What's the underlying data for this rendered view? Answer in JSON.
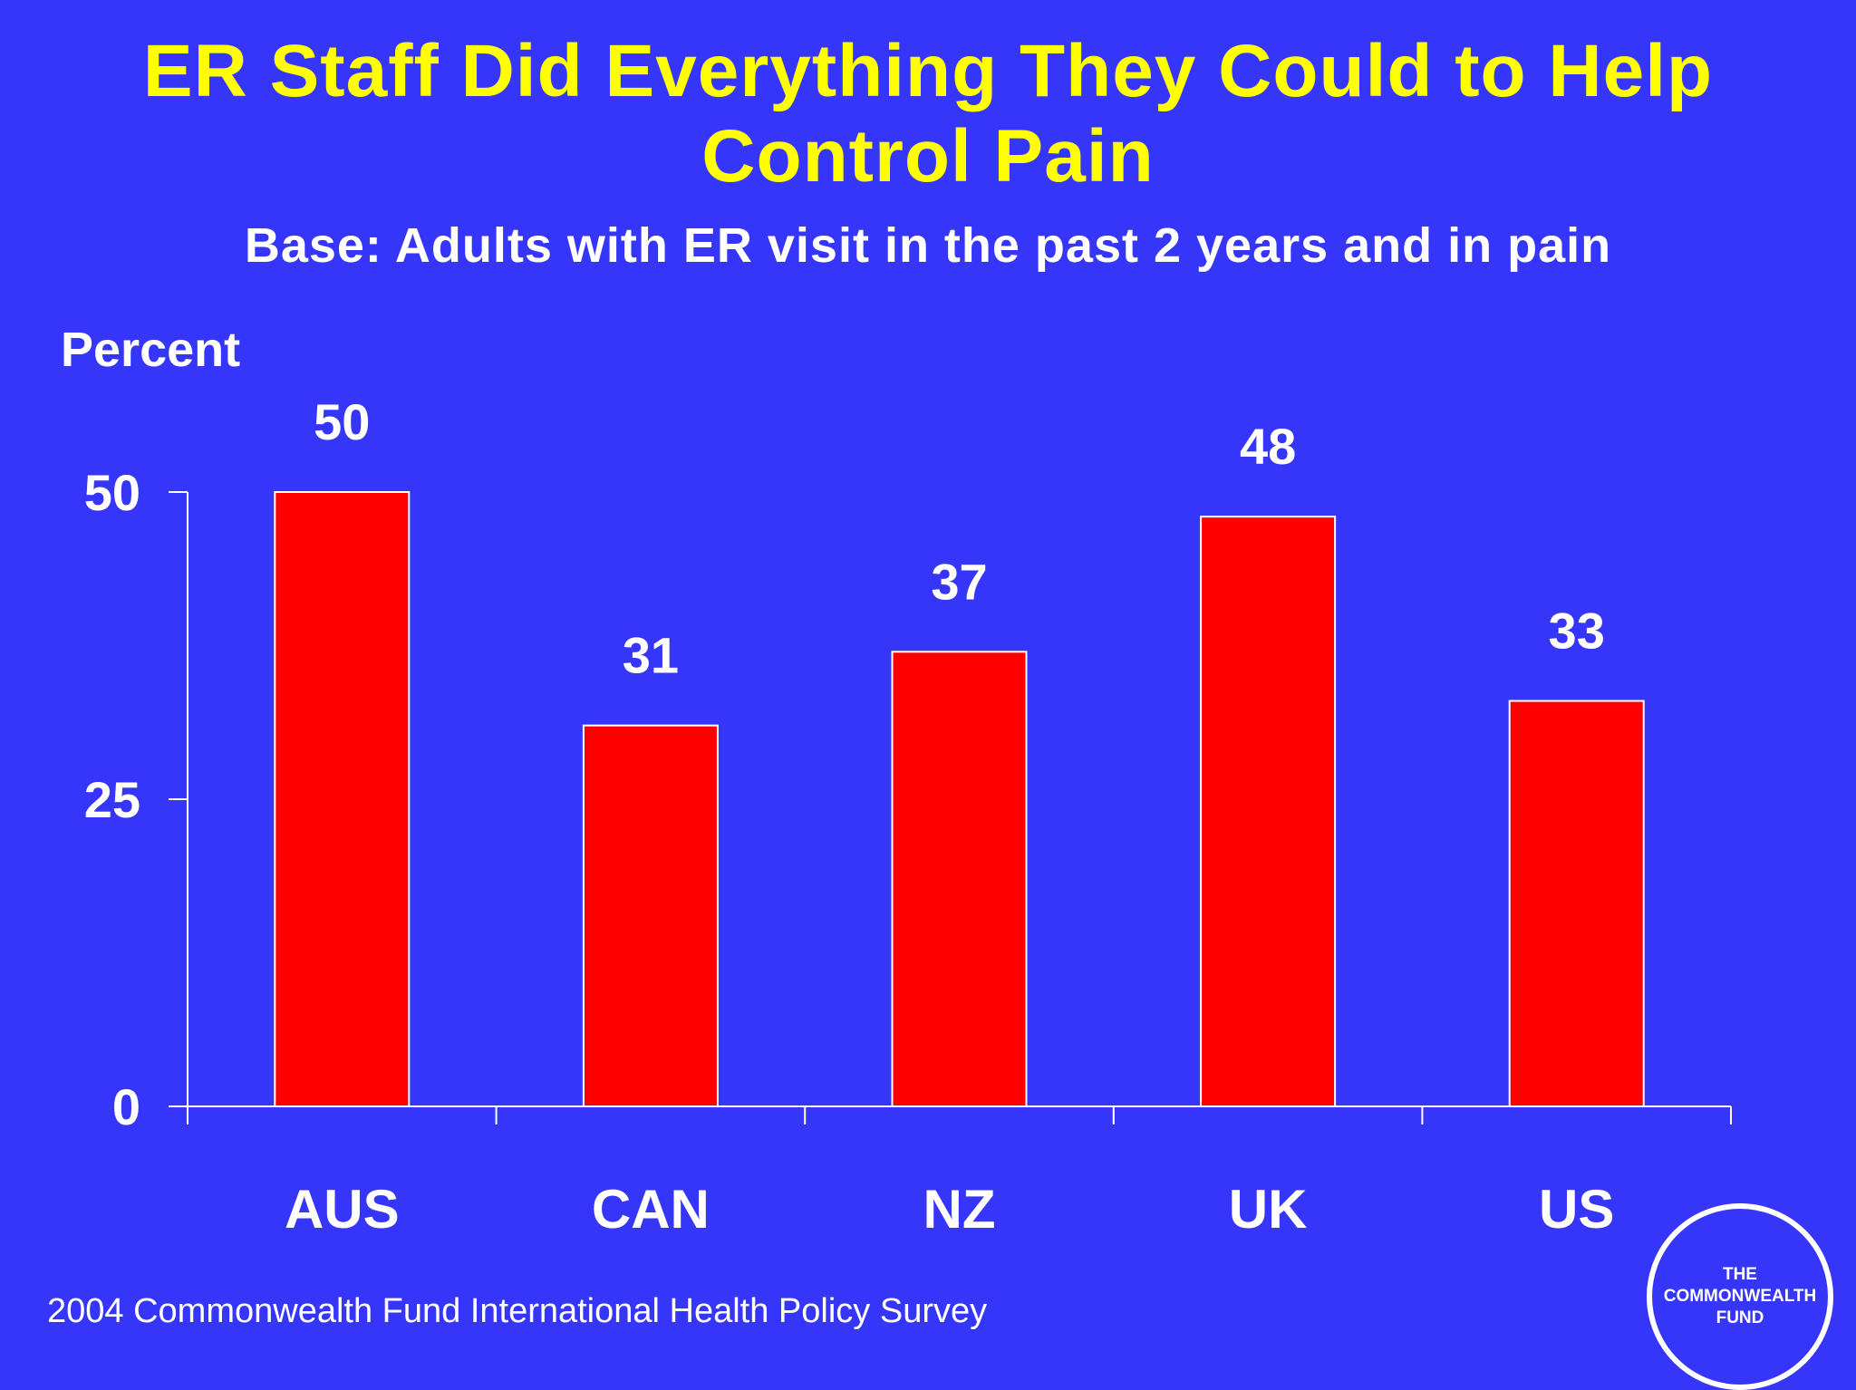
{
  "chart_data": {
    "type": "bar",
    "title": "ER Staff Did Everything They Could to Help Control Pain",
    "subtitle": "Base: Adults with ER visit in the past 2 years and in pain",
    "ylabel": "Percent",
    "xlabel": "",
    "categories": [
      "AUS",
      "CAN",
      "NZ",
      "UK",
      "US"
    ],
    "values": [
      50,
      31,
      37,
      48,
      33
    ],
    "ylim": [
      0,
      50
    ],
    "yticks": [
      0,
      25,
      50
    ],
    "grid": false,
    "legend": "none",
    "colors": {
      "bar": "#FF0000",
      "bar_outline": "#FFFFFF",
      "background": "#3636FA",
      "title": "#FFFF00",
      "text": "#FFFFFF"
    }
  },
  "footer": {
    "source": "2004 Commonwealth Fund International Health Policy Survey",
    "logo_text": "THE\nCOMMONWEALTH\nFUND"
  }
}
